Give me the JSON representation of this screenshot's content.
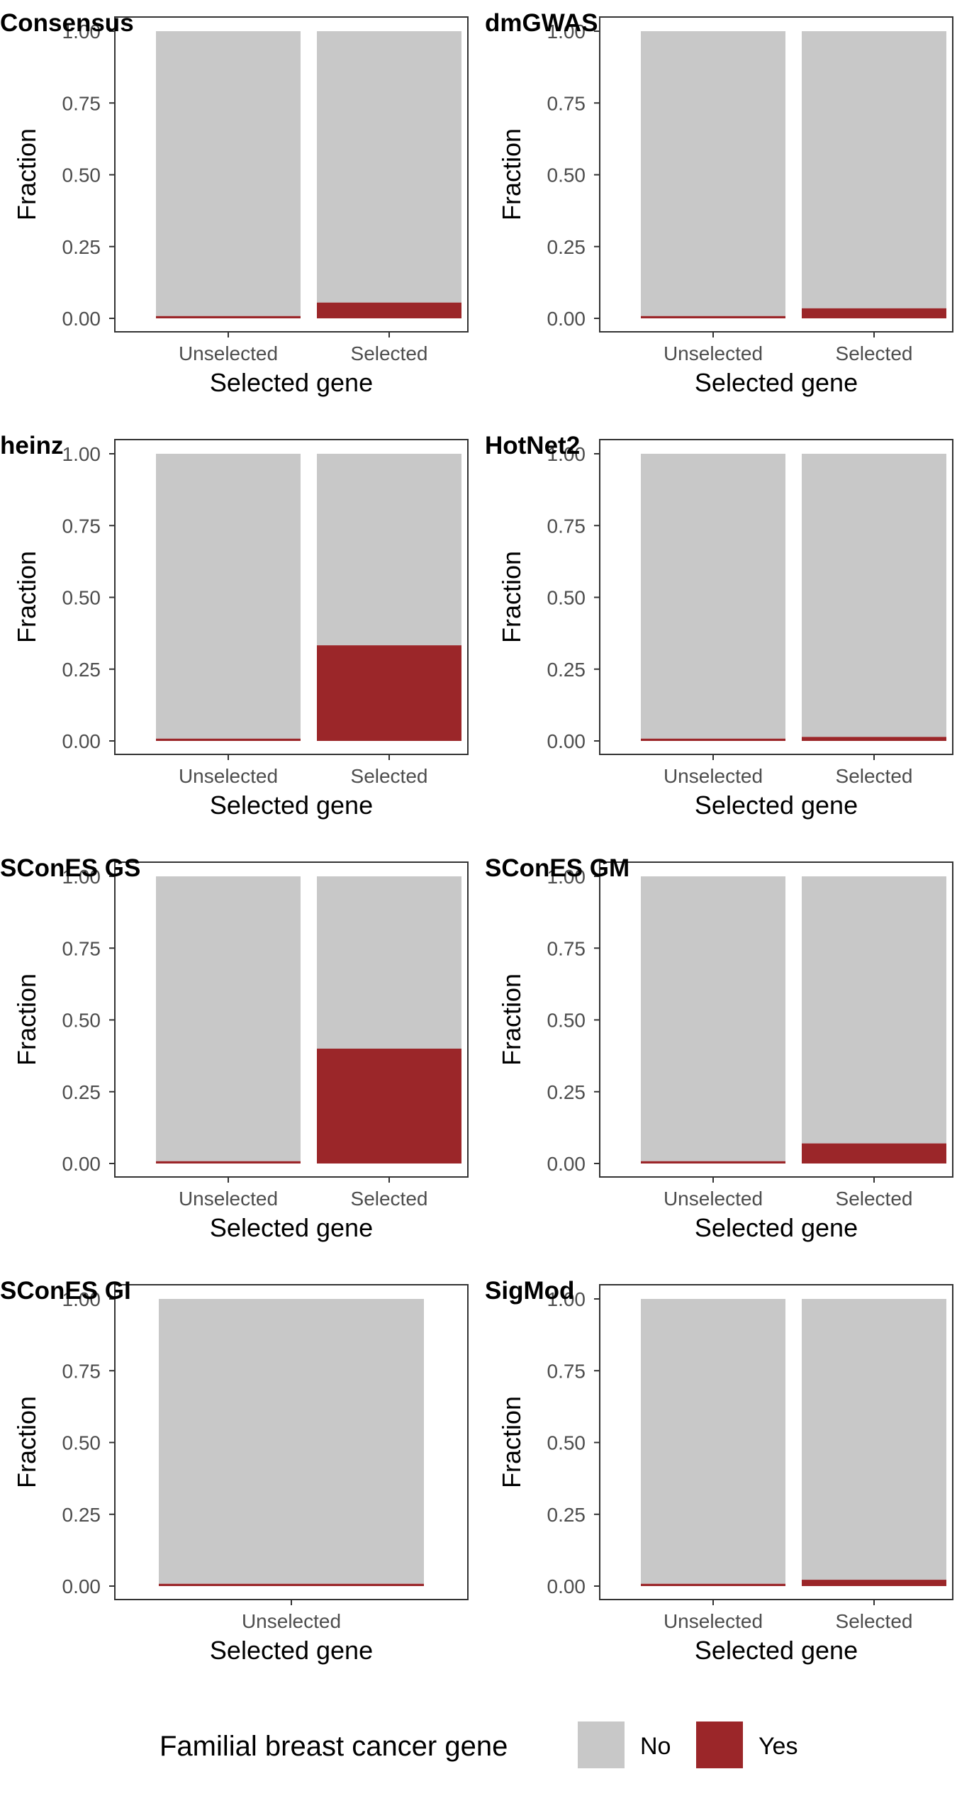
{
  "chart_data": {
    "type": "bar",
    "stacked": true,
    "fill_scale": "fraction",
    "ylabel": "Fraction",
    "xlabel": "Selected gene",
    "ylim": [
      0,
      1
    ],
    "yticks": [
      0,
      0.25,
      0.5,
      0.75,
      1
    ],
    "ytick_labels": [
      "0.00",
      "0.25",
      "0.50",
      "0.75",
      "1.00"
    ],
    "grid": false,
    "legend": {
      "title": "Familial breast cancer gene",
      "position": "bottom",
      "entries": [
        {
          "label": "No",
          "color": "#c8c8c8"
        },
        {
          "label": "Yes",
          "color": "#9b2629"
        }
      ]
    },
    "panels": [
      {
        "title": "Consensus",
        "categories": [
          "Unselected",
          "Selected"
        ],
        "yes_fraction": [
          0.008,
          0.055
        ]
      },
      {
        "title": "dmGWAS",
        "categories": [
          "Unselected",
          "Selected"
        ],
        "yes_fraction": [
          0.008,
          0.035
        ]
      },
      {
        "title": "heinz",
        "categories": [
          "Unselected",
          "Selected"
        ],
        "yes_fraction": [
          0.008,
          0.333
        ]
      },
      {
        "title": "HotNet2",
        "categories": [
          "Unselected",
          "Selected"
        ],
        "yes_fraction": [
          0.008,
          0.014
        ]
      },
      {
        "title": "SConES GS",
        "categories": [
          "Unselected",
          "Selected"
        ],
        "yes_fraction": [
          0.008,
          0.4
        ]
      },
      {
        "title": "SConES GM",
        "categories": [
          "Unselected",
          "Selected"
        ],
        "yes_fraction": [
          0.008,
          0.07
        ]
      },
      {
        "title": "SConES GI",
        "categories": [
          "Unselected"
        ],
        "yes_fraction": [
          0.008
        ]
      },
      {
        "title": "SigMod",
        "categories": [
          "Unselected",
          "Selected"
        ],
        "yes_fraction": [
          0.008,
          0.022
        ]
      }
    ]
  }
}
